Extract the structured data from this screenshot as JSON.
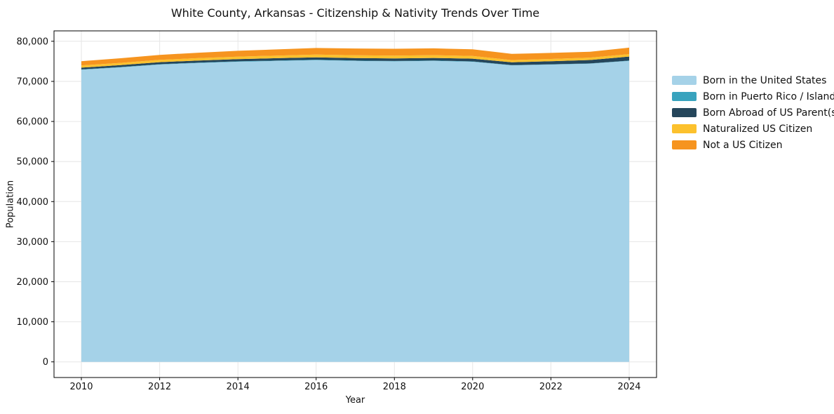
{
  "title": "White County, Arkansas - Citizenship & Nativity Trends Over Time",
  "chart_data": {
    "type": "area",
    "stacked": true,
    "title": "White County, Arkansas - Citizenship & Nativity Trends Over Time",
    "xlabel": "Year",
    "ylabel": "Population",
    "grid": true,
    "legend_position": "right",
    "x": [
      2010,
      2011,
      2012,
      2013,
      2014,
      2015,
      2016,
      2017,
      2018,
      2019,
      2020,
      2021,
      2022,
      2023,
      2024
    ],
    "series": [
      {
        "name": "Born in the United States",
        "color": "#a5d2e8",
        "values": [
          72900,
          73500,
          74200,
          74600,
          74900,
          75100,
          75300,
          75100,
          75000,
          75100,
          74900,
          74000,
          74200,
          74400,
          75100
        ]
      },
      {
        "name": "Born in Puerto Rico / Islands",
        "color": "#38a3be",
        "values": [
          80,
          80,
          90,
          90,
          100,
          100,
          100,
          90,
          90,
          90,
          80,
          60,
          70,
          80,
          90
        ]
      },
      {
        "name": "Born Abroad of US Parent(s)",
        "color": "#25465b",
        "values": [
          450,
          480,
          500,
          520,
          550,
          580,
          600,
          620,
          650,
          650,
          680,
          700,
          750,
          850,
          1000
        ]
      },
      {
        "name": "Naturalized US Citizen",
        "color": "#fcc12d",
        "values": [
          550,
          560,
          580,
          600,
          620,
          650,
          680,
          700,
          700,
          700,
          680,
          550,
          580,
          600,
          620
        ]
      },
      {
        "name": "Not a US Citizen",
        "color": "#f6941f",
        "values": [
          1050,
          1150,
          1250,
          1350,
          1450,
          1550,
          1650,
          1700,
          1700,
          1700,
          1650,
          1550,
          1500,
          1450,
          1600
        ]
      }
    ],
    "x_ticks": [
      2010,
      2012,
      2014,
      2016,
      2018,
      2020,
      2022,
      2024
    ],
    "x_tick_labels": [
      "2010",
      "2012",
      "2014",
      "2016",
      "2018",
      "2020",
      "2022",
      "2024"
    ],
    "y_ticks": [
      0,
      10000,
      20000,
      30000,
      40000,
      50000,
      60000,
      70000,
      80000
    ],
    "y_tick_labels": [
      "0",
      "10,000",
      "20,000",
      "30,000",
      "40,000",
      "50,000",
      "60,000",
      "70,000",
      "80,000"
    ],
    "xlim": [
      2009.3,
      2024.7
    ],
    "ylim": [
      -3900,
      82600
    ]
  },
  "colors": {
    "background": "#ffffff",
    "grid": "#e6e6e6",
    "spine": "#000000",
    "tick": "#000000",
    "text": "#111111"
  }
}
